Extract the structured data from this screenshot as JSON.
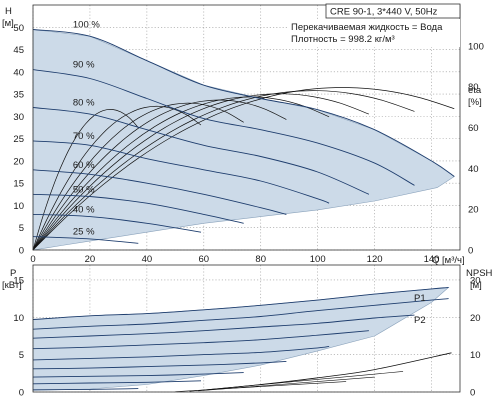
{
  "title_box": "CRE 90-1, 3*440 V, 50Hz",
  "notes": {
    "liquid": "Перекачиваемая жидкость = Вода",
    "density": "Плотность = 998.2 кг/м³"
  },
  "top_chart": {
    "ylabel_top": "H",
    "ylabel_unit": "[м]",
    "eta_label": "eta",
    "eta_unit": "[%]",
    "xlabel": "Q [м³/ч]",
    "y_ticks": [
      0,
      5,
      10,
      15,
      20,
      25,
      30,
      35,
      40,
      45,
      50
    ],
    "eta_ticks": [
      0,
      20,
      40,
      60,
      80,
      100
    ]
  },
  "x_ticks": [
    0,
    20,
    40,
    60,
    80,
    100,
    120,
    140
  ],
  "bottom_chart": {
    "ylabel_top": "P",
    "ylabel_unit": "[кВт]",
    "npsh_label": "NPSH",
    "npsh_unit": "[м]",
    "y_ticks": [
      0,
      5,
      10,
      15
    ],
    "npsh_ticks": [
      0,
      10,
      20,
      30
    ],
    "p1_label": "P1",
    "p2_label": "P2"
  },
  "chart_data": [
    {
      "type": "line",
      "title": "CRE 90-1, 3*440 V, 50Hz",
      "xlabel": "Q [м³/ч]",
      "ylabel": "H [м]",
      "y2label": "eta [%]",
      "xlim": [
        0,
        150
      ],
      "ylim": [
        0,
        55
      ],
      "y2lim": [
        0,
        120
      ],
      "speed_labels": [
        "100 %",
        "90 %",
        "80 %",
        "70 %",
        "60 %",
        "50 %",
        "40 %",
        "25 %"
      ],
      "series": [
        {
          "name": "100 %",
          "x": [
            0,
            20,
            40,
            60,
            80,
            100,
            120,
            140,
            148
          ],
          "y": [
            49.5,
            48.0,
            42.5,
            37.0,
            34.0,
            31.5,
            27.0,
            20.0,
            16.5
          ]
        },
        {
          "name": "90 %",
          "x": [
            0,
            20,
            40,
            60,
            80,
            100,
            120,
            134
          ],
          "y": [
            40.5,
            38.5,
            34.0,
            29.5,
            27.0,
            24.0,
            19.5,
            14.5
          ]
        },
        {
          "name": "80 %",
          "x": [
            0,
            20,
            40,
            60,
            80,
            100,
            118
          ],
          "y": [
            32.0,
            30.5,
            27.0,
            23.5,
            21.0,
            17.5,
            12.5
          ]
        },
        {
          "name": "70 %",
          "x": [
            0,
            20,
            40,
            60,
            80,
            100,
            104
          ],
          "y": [
            24.5,
            23.5,
            20.5,
            18.0,
            15.5,
            11.5,
            10.5
          ]
        },
        {
          "name": "60 %",
          "x": [
            0,
            20,
            40,
            60,
            80,
            89
          ],
          "y": [
            18.0,
            17.0,
            15.0,
            12.5,
            9.5,
            8.0
          ]
        },
        {
          "name": "50 %",
          "x": [
            0,
            20,
            40,
            60,
            74
          ],
          "y": [
            12.5,
            12.0,
            10.5,
            8.0,
            6.0
          ]
        },
        {
          "name": "40 %",
          "x": [
            0,
            20,
            40,
            59
          ],
          "y": [
            8.0,
            7.5,
            6.0,
            4.0
          ]
        },
        {
          "name": "25 %",
          "x": [
            0,
            20,
            37
          ],
          "y": [
            3.0,
            2.5,
            1.5
          ]
        }
      ],
      "envelope": {
        "x": [
          0,
          20,
          40,
          60,
          80,
          100,
          120,
          140,
          148,
          142,
          120,
          100,
          80,
          60,
          40,
          20,
          10,
          5,
          0
        ],
        "y": [
          49.5,
          48.0,
          42.5,
          37.0,
          34.0,
          31.5,
          27.0,
          20.0,
          16.5,
          14.0,
          11.0,
          9.0,
          7.5,
          6.0,
          4.0,
          2.0,
          1.0,
          0.5,
          0
        ]
      }
    },
    {
      "type": "line",
      "xlabel": "Q [м³/ч]",
      "ylabel": "P [кВт]",
      "y2label": "NPSH [м]",
      "xlim": [
        0,
        150
      ],
      "ylim": [
        0,
        17
      ],
      "y2lim": [
        0,
        34
      ],
      "series": [
        {
          "name": "P1",
          "x": [
            0,
            20,
            40,
            60,
            80,
            100,
            120,
            140,
            146
          ],
          "y": [
            9.7,
            10.2,
            10.5,
            11.0,
            11.6,
            12.3,
            13.1,
            13.8,
            14.0
          ]
        },
        {
          "name": "P2",
          "x": [
            0,
            20,
            40,
            60,
            80,
            100,
            120,
            140,
            146
          ],
          "y": [
            8.4,
            8.8,
            9.1,
            9.6,
            10.1,
            10.9,
            11.6,
            12.3,
            12.5
          ]
        },
        {
          "name": "",
          "x": [
            0,
            20,
            40,
            60,
            80,
            100,
            120,
            134
          ],
          "y": [
            7.2,
            7.5,
            7.8,
            8.2,
            8.7,
            9.2,
            9.9,
            10.3
          ]
        },
        {
          "name": "",
          "x": [
            0,
            20,
            40,
            60,
            80,
            100,
            118
          ],
          "y": [
            5.8,
            6.0,
            6.3,
            6.6,
            7.0,
            7.6,
            8.2
          ]
        },
        {
          "name": "",
          "x": [
            0,
            20,
            40,
            60,
            80,
            100,
            104
          ],
          "y": [
            4.3,
            4.5,
            4.7,
            5.0,
            5.3,
            5.9,
            6.1
          ]
        },
        {
          "name": "",
          "x": [
            0,
            20,
            40,
            60,
            80,
            89
          ],
          "y": [
            3.1,
            3.2,
            3.4,
            3.6,
            3.9,
            4.1
          ]
        },
        {
          "name": "",
          "x": [
            0,
            20,
            40,
            60,
            74
          ],
          "y": [
            2.0,
            2.1,
            2.2,
            2.4,
            2.6
          ]
        },
        {
          "name": "",
          "x": [
            0,
            20,
            40,
            59
          ],
          "y": [
            1.1,
            1.2,
            1.3,
            1.5
          ]
        },
        {
          "name": "",
          "x": [
            0,
            20,
            37
          ],
          "y": [
            0.3,
            0.35,
            0.45
          ]
        }
      ],
      "npsh": {
        "x": [
          60,
          80,
          100,
          120,
          147
        ],
        "y": [
          0.5,
          2.0,
          3.8,
          6.0,
          10.5
        ]
      },
      "envelope": {
        "x": [
          0,
          20,
          40,
          60,
          80,
          100,
          120,
          140,
          146,
          140,
          120,
          100,
          80,
          60,
          40,
          20,
          0
        ],
        "y": [
          9.7,
          10.2,
          10.5,
          11.0,
          11.6,
          12.3,
          13.1,
          13.8,
          14.0,
          12.0,
          7.5,
          5.5,
          3.6,
          2.2,
          1.0,
          0.4,
          0.2
        ]
      }
    }
  ]
}
